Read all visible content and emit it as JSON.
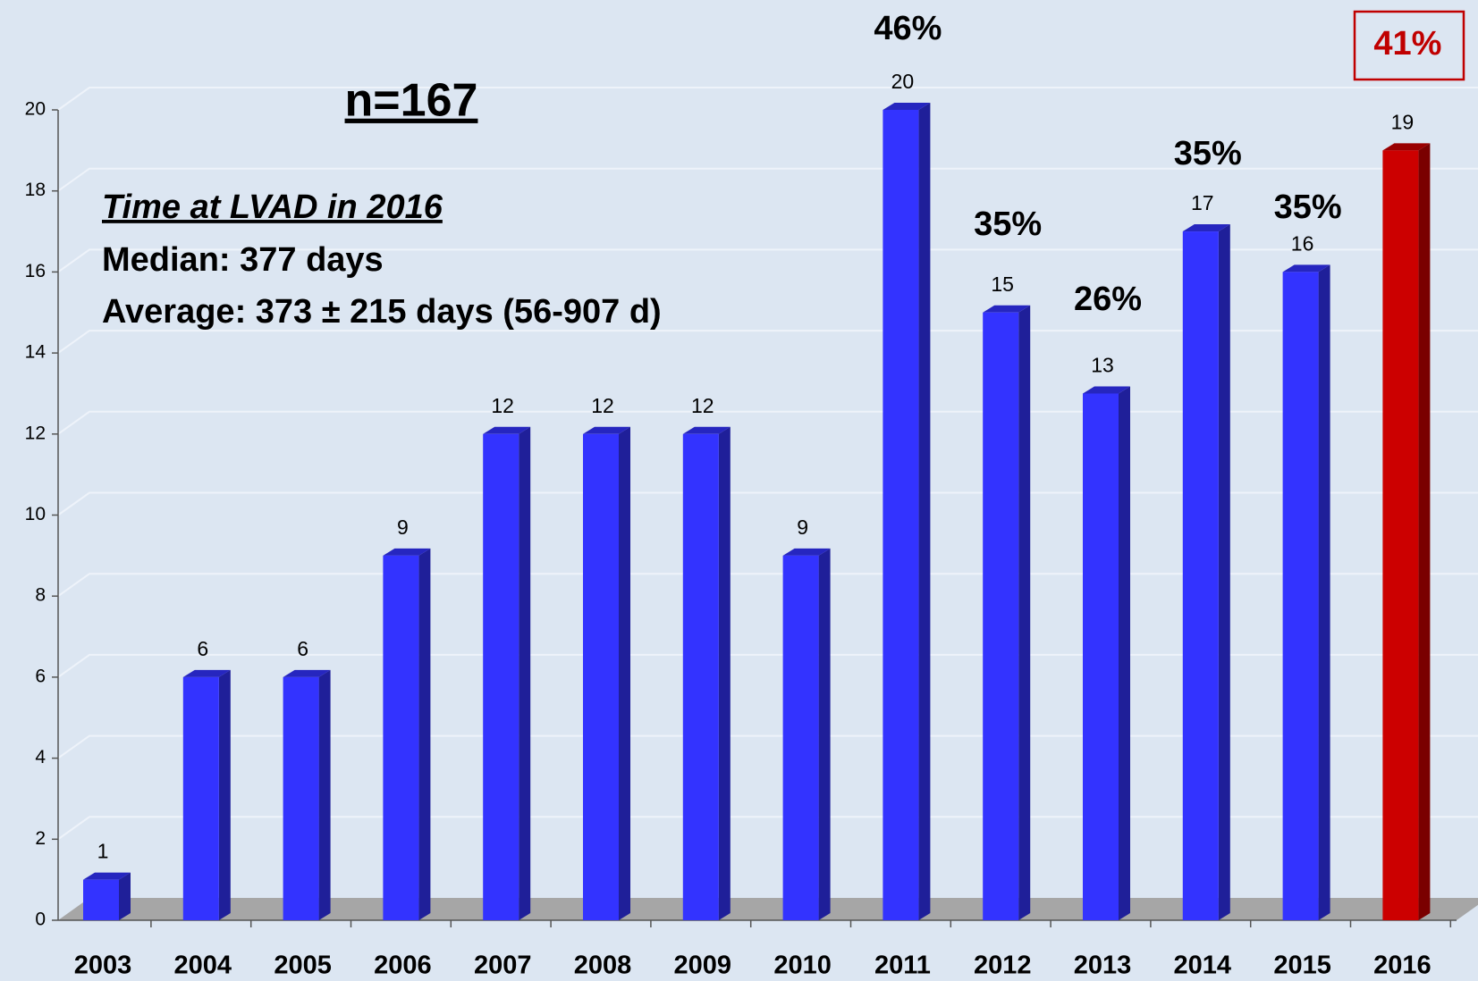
{
  "chart_data": {
    "type": "bar",
    "categories": [
      "2003",
      "2004",
      "2005",
      "2006",
      "2007",
      "2008",
      "2009",
      "2010",
      "2011",
      "2012",
      "2013",
      "2014",
      "2015",
      "2016"
    ],
    "values": [
      1,
      6,
      6,
      9,
      12,
      12,
      12,
      9,
      20,
      15,
      13,
      17,
      16,
      19
    ],
    "colors": [
      "#3333ff",
      "#3333ff",
      "#3333ff",
      "#3333ff",
      "#3333ff",
      "#3333ff",
      "#3333ff",
      "#3333ff",
      "#3333ff",
      "#3333ff",
      "#3333ff",
      "#3333ff",
      "#3333ff",
      "#cc0000"
    ],
    "annotations": [
      null,
      null,
      null,
      null,
      null,
      null,
      null,
      null,
      "46%",
      "35%",
      "26%",
      "35%",
      "35%",
      "41%"
    ],
    "ylim": [
      0,
      20
    ],
    "yticks": [
      0,
      2,
      4,
      6,
      8,
      10,
      12,
      14,
      16,
      18,
      20
    ],
    "grid": true,
    "notes": {
      "n": "n=167",
      "heading": "Time at LVAD in 2016",
      "median": "Median:  377  days",
      "average": "Average:  373 ±  215 days (56-907 d)"
    }
  }
}
